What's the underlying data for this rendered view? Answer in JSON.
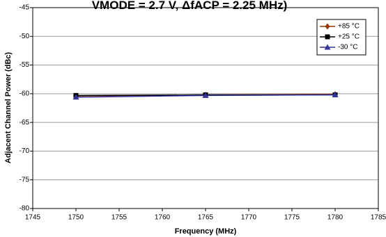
{
  "chart_data": {
    "type": "line",
    "title": "VMODE = 2.7 V, ΔfACP = 2.25 MHz)",
    "x_label": "Frequency (MHz)",
    "y_label": "Adjacent Channel Power (dBc)",
    "x": [
      1750,
      1765,
      1780
    ],
    "series": [
      {
        "name": "+85 °C",
        "color": "#993300",
        "marker": "diamond",
        "values": [
          -60.4,
          -60.2,
          -60.1
        ]
      },
      {
        "name": "+25 °C",
        "color": "#000000",
        "marker": "square",
        "values": [
          -60.3,
          -60.2,
          -60.2
        ]
      },
      {
        "name": "-30 °C",
        "color": "#333399",
        "marker": "triangle",
        "values": [
          -60.6,
          -60.3,
          -60.2
        ]
      }
    ],
    "xlim": [
      1745,
      1785
    ],
    "xticks": [
      1745,
      1750,
      1755,
      1760,
      1765,
      1770,
      1775,
      1780,
      1785
    ],
    "ylim": [
      -80,
      -45
    ],
    "yticks": [
      -80,
      -75,
      -70,
      -65,
      -60,
      -55,
      -50,
      -45
    ],
    "grid": true,
    "legend": "upper right"
  }
}
